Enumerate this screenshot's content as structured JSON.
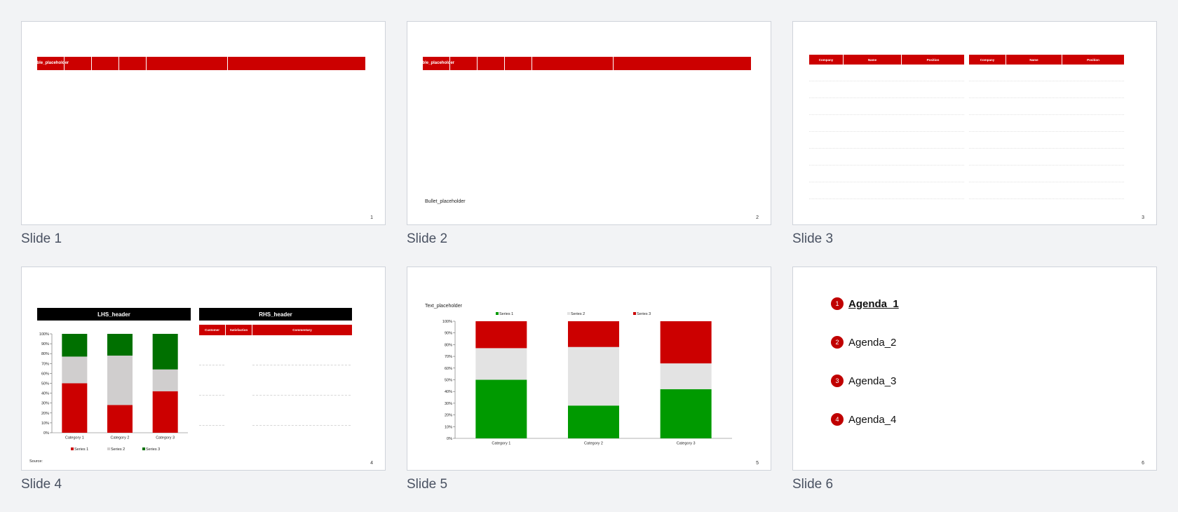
{
  "slides": [
    {
      "caption": "Slide 1",
      "number": "1",
      "table_placeholder": "Table_placeholder"
    },
    {
      "caption": "Slide 2",
      "number": "2",
      "table_placeholder": "Table_placeholder",
      "bullet_placeholder": "Bullet_placeholder"
    },
    {
      "caption": "Slide 3",
      "number": "3",
      "columns": [
        "Company",
        "Name",
        "Position"
      ]
    },
    {
      "caption": "Slide 4",
      "number": "4",
      "lhs_header": "LHS_header",
      "rhs_header": "RHS_header",
      "rhs_columns": [
        "Customer",
        "Satisfaction",
        "Commentary"
      ],
      "source": "Source:"
    },
    {
      "caption": "Slide 5",
      "number": "5",
      "text_placeholder": "Text_placeholder"
    },
    {
      "caption": "Slide 6",
      "number": "6",
      "agenda": [
        "Agenda_1",
        "Agenda_2",
        "Agenda_3",
        "Agenda_4"
      ],
      "active_index": 0
    }
  ],
  "colors": {
    "red": "#cc0000",
    "green_dark": "#007000",
    "green": "#009a00",
    "grey": "#d0cece",
    "grey_light": "#e3e3e3",
    "background": "#f2f3f5"
  },
  "chart_data": [
    {
      "type": "bar",
      "stacked": true,
      "slide": 4,
      "categories": [
        "Category 1",
        "Category 2",
        "Category 3"
      ],
      "series": [
        {
          "name": "Series 1",
          "values": [
            50,
            28,
            42
          ],
          "color": "#cc0000"
        },
        {
          "name": "Series 2",
          "values": [
            27,
            50,
            22
          ],
          "color": "#d0cece"
        },
        {
          "name": "Series 3",
          "values": [
            23,
            22,
            36
          ],
          "color": "#007000"
        }
      ],
      "yticks": [
        "0%",
        "10%",
        "20%",
        "30%",
        "40%",
        "50%",
        "60%",
        "70%",
        "80%",
        "90%",
        "100%"
      ],
      "ylim": [
        0,
        100
      ],
      "legend": "bottom"
    },
    {
      "type": "bar",
      "stacked": true,
      "slide": 5,
      "categories": [
        "Category 1",
        "Category 2",
        "Category 3"
      ],
      "series": [
        {
          "name": "Series 1",
          "values": [
            50,
            28,
            42
          ],
          "color": "#009a00"
        },
        {
          "name": "Series 2",
          "values": [
            27,
            50,
            22
          ],
          "color": "#e3e3e3"
        },
        {
          "name": "Series 3",
          "values": [
            23,
            22,
            36
          ],
          "color": "#cc0000"
        }
      ],
      "yticks": [
        "0%",
        "10%",
        "20%",
        "30%",
        "40%",
        "50%",
        "60%",
        "70%",
        "80%",
        "90%",
        "100%"
      ],
      "ylim": [
        0,
        100
      ],
      "legend": "top"
    }
  ]
}
